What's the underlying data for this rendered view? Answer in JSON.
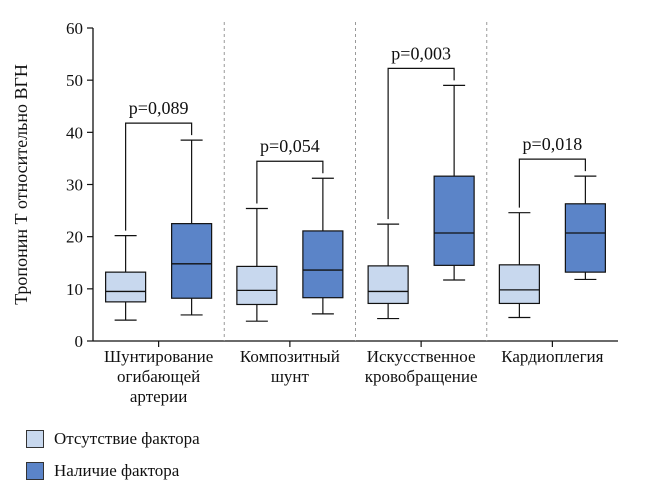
{
  "chart_data": {
    "type": "box",
    "ylabel": "Тропонин Т относительно ВГН",
    "ylim": [
      0,
      60
    ],
    "yticks": [
      0,
      10,
      20,
      30,
      40,
      50,
      60
    ],
    "groups": [
      {
        "label": [
          "Шунтирование",
          "огибающей",
          "артерии"
        ],
        "p_value": "p=0,089"
      },
      {
        "label": [
          "Композитный",
          "шунт"
        ],
        "p_value": "p=0,054"
      },
      {
        "label": [
          "Искусственное",
          "кровобращение"
        ],
        "p_value": "p=0,003"
      },
      {
        "label": [
          "Кардиоплегия"
        ],
        "p_value": "p=0,018"
      }
    ],
    "series": [
      {
        "name": "Отсутствие фактора",
        "color": "#c8d8ee",
        "boxes": [
          {
            "min": 4,
            "q1": 7.5,
            "median": 9.5,
            "q3": 13.2,
            "max": 20.2
          },
          {
            "min": 3.8,
            "q1": 7,
            "median": 9.7,
            "q3": 14.3,
            "max": 25.4
          },
          {
            "min": 4.3,
            "q1": 7.2,
            "median": 9.5,
            "q3": 14.4,
            "max": 22.4
          },
          {
            "min": 4.5,
            "q1": 7.2,
            "median": 9.8,
            "q3": 14.6,
            "max": 24.6
          }
        ]
      },
      {
        "name": "Наличие фактора",
        "color": "#5b84c8",
        "boxes": [
          {
            "min": 5,
            "q1": 8.2,
            "median": 14.8,
            "q3": 22.5,
            "max": 38.5
          },
          {
            "min": 5.2,
            "q1": 8.3,
            "median": 13.6,
            "q3": 21.1,
            "max": 31.2
          },
          {
            "min": 11.7,
            "q1": 14.5,
            "median": 20.7,
            "q3": 31.6,
            "max": 49
          },
          {
            "min": 11.8,
            "q1": 13.2,
            "median": 20.7,
            "q3": 26.3,
            "max": 31.6
          }
        ]
      }
    ],
    "legend": {
      "position": "bottom-left",
      "items": [
        {
          "label": "Отсутствие фактора",
          "color": "#c8d8ee"
        },
        {
          "label": "Наличие фактора",
          "color": "#5b84c8"
        }
      ]
    }
  }
}
